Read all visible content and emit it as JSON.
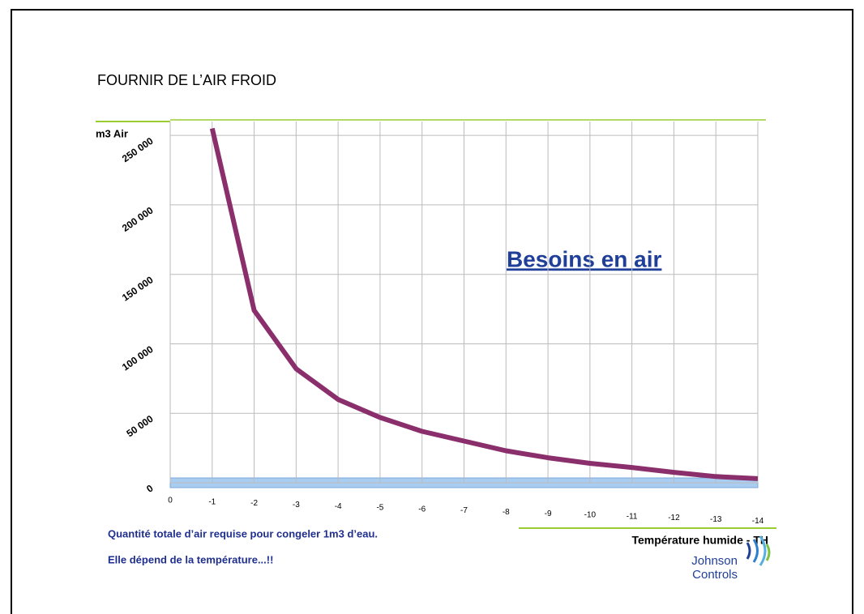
{
  "title": "FOURNIR DE L’AIR FROID",
  "chart_data": {
    "type": "line",
    "y_label": "m3 Air",
    "x_label": "Température humide - TH",
    "annotation": "Besoins en air",
    "x": [
      0,
      -1,
      -2,
      -3,
      -4,
      -5,
      -6,
      -7,
      -8,
      -9,
      -10,
      -11,
      -12,
      -13,
      -14
    ],
    "values": [
      null,
      255000,
      124000,
      82000,
      60000,
      47000,
      37000,
      30000,
      23000,
      18000,
      14000,
      11000,
      7500,
      4500,
      3000
    ],
    "color": "#8a2f6c",
    "xlim": [
      0,
      -14
    ],
    "xticks": [
      0,
      -1,
      -2,
      -3,
      -4,
      -5,
      -6,
      -7,
      -8,
      -9,
      -10,
      -11,
      -12,
      -13,
      -14
    ],
    "ylim": [
      0,
      260000
    ],
    "yticks": [
      0,
      {
        "value": 50000,
        "label": "50 000"
      },
      {
        "value": 100000,
        "label": "100 000"
      },
      {
        "value": 150000,
        "label": "150 000"
      },
      {
        "value": 200000,
        "label": "200 000"
      },
      {
        "value": 250000,
        "label": "250 000"
      }
    ],
    "grid": true
  },
  "notes": [
    "Quantité totale d’air requise pour congeler 1m3 d’eau.",
    "Elle dépend de la température...!!"
  ],
  "logo": [
    "Johnson",
    "Controls"
  ]
}
